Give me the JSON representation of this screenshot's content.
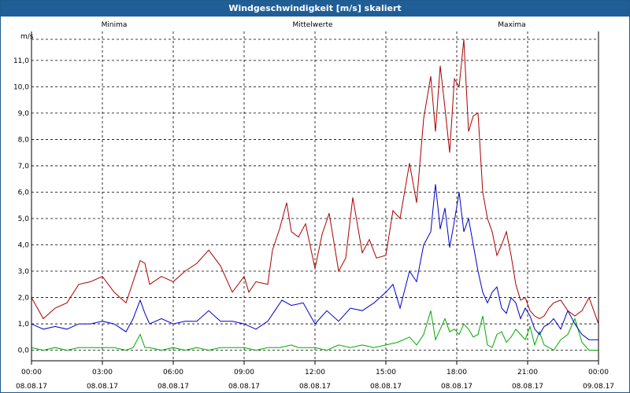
{
  "window_title": "Windgeschwindigkeit [m/s] skaliert",
  "chart_data": {
    "type": "line",
    "title": "Windgeschwindigkeit [m/s] skaliert",
    "ylabel": "m/s",
    "ylim": [
      -0.4,
      12.1
    ],
    "xlim": [
      0,
      24
    ],
    "grid": true,
    "legend": "top",
    "y_ticks": [
      "0,0",
      "1,0",
      "2,0",
      "3,0",
      "4,0",
      "5,0",
      "6,0",
      "7,0",
      "8,0",
      "9,0",
      "10,0",
      "11,0"
    ],
    "x_ticks": [
      {
        "time": "00:00",
        "date": "08.08.17"
      },
      {
        "time": "03:00",
        "date": "08.08.17"
      },
      {
        "time": "06:00",
        "date": "08.08.17"
      },
      {
        "time": "09:00",
        "date": "08.08.17"
      },
      {
        "time": "12:00",
        "date": "08.08.17"
      },
      {
        "time": "15:00",
        "date": "08.08.17"
      },
      {
        "time": "18:00",
        "date": "08.08.17"
      },
      {
        "time": "21:00",
        "date": "08.08.17"
      },
      {
        "time": "00:00",
        "date": "09.08.17"
      }
    ],
    "series": [
      {
        "name": "Minima",
        "color": "#00aa00",
        "x": [
          0,
          0.5,
          1,
          1.5,
          2,
          2.5,
          3,
          3.5,
          4,
          4.3,
          4.6,
          4.8,
          5,
          5.5,
          6,
          6.5,
          7,
          7.5,
          8,
          8.5,
          9,
          9.5,
          10,
          10.5,
          11,
          11.3,
          11.5,
          12,
          12.5,
          13,
          13.5,
          14,
          14.5,
          15,
          15.5,
          16,
          16.3,
          16.6,
          16.9,
          17.1,
          17.3,
          17.5,
          17.7,
          17.9,
          18.1,
          18.3,
          18.5,
          18.7,
          18.9,
          19.1,
          19.3,
          19.5,
          19.7,
          19.9,
          20.1,
          20.3,
          20.5,
          20.7,
          20.9,
          21.1,
          21.3,
          21.5,
          21.7,
          21.9,
          22.1,
          22.4,
          22.7,
          23,
          23.3,
          23.6,
          24
        ],
        "values": [
          0.1,
          0.0,
          0.1,
          0.0,
          0.1,
          0.1,
          0.1,
          0.1,
          0.0,
          0.1,
          0.6,
          0.1,
          0.1,
          0.0,
          0.1,
          0.0,
          0.1,
          0.0,
          0.1,
          0.1,
          0.1,
          0.0,
          0.1,
          0.1,
          0.2,
          0.1,
          0.1,
          0.1,
          0.0,
          0.2,
          0.1,
          0.2,
          0.1,
          0.2,
          0.3,
          0.5,
          0.2,
          0.6,
          1.5,
          0.4,
          0.8,
          1.2,
          0.7,
          0.8,
          0.6,
          1.0,
          0.8,
          0.5,
          0.6,
          1.3,
          0.2,
          0.1,
          0.6,
          0.7,
          0.3,
          0.5,
          0.8,
          0.6,
          0.4,
          0.9,
          0.2,
          0.7,
          0.2,
          0.1,
          0.0,
          0.4,
          0.6,
          1.2,
          0.3,
          0.0,
          0.0
        ]
      },
      {
        "name": "Mittelwerte",
        "color": "#0000cc",
        "x": [
          0,
          0.5,
          1,
          1.5,
          2,
          2.5,
          3,
          3.5,
          4,
          4.3,
          4.6,
          4.8,
          5,
          5.5,
          6,
          6.5,
          7,
          7.5,
          8,
          8.5,
          9,
          9.5,
          10,
          10.3,
          10.6,
          11,
          11.5,
          12,
          12.5,
          13,
          13.5,
          14,
          14.5,
          15,
          15.3,
          15.6,
          16,
          16.3,
          16.6,
          16.9,
          17.1,
          17.3,
          17.5,
          17.7,
          17.9,
          18.1,
          18.3,
          18.5,
          18.7,
          18.9,
          19.1,
          19.3,
          19.5,
          19.7,
          19.9,
          20.1,
          20.3,
          20.5,
          20.7,
          20.9,
          21.1,
          21.3,
          21.5,
          21.7,
          21.9,
          22.1,
          22.4,
          22.7,
          23,
          23.3,
          23.6,
          24
        ],
        "values": [
          1.0,
          0.8,
          0.9,
          0.8,
          1.0,
          1.0,
          1.1,
          1.0,
          0.7,
          1.2,
          1.9,
          1.4,
          1.0,
          1.2,
          1.0,
          1.1,
          1.1,
          1.5,
          1.1,
          1.1,
          1.0,
          0.8,
          1.1,
          1.5,
          1.9,
          1.7,
          1.8,
          1.0,
          1.5,
          1.1,
          1.6,
          1.5,
          1.8,
          2.2,
          2.5,
          1.6,
          3.0,
          2.6,
          4.0,
          4.5,
          6.3,
          4.6,
          5.4,
          3.9,
          4.9,
          6.0,
          4.5,
          5.0,
          4.0,
          3.0,
          2.2,
          1.8,
          2.2,
          2.4,
          1.6,
          1.4,
          2.0,
          1.8,
          1.2,
          1.6,
          1.3,
          0.8,
          0.6,
          0.9,
          1.0,
          1.2,
          0.8,
          1.5,
          1.0,
          0.6,
          0.4,
          0.4
        ]
      },
      {
        "name": "Maxima",
        "color": "#aa0000",
        "x": [
          0,
          0.5,
          1,
          1.5,
          2,
          2.5,
          3,
          3.5,
          4,
          4.3,
          4.6,
          4.8,
          5,
          5.5,
          6,
          6.5,
          7,
          7.5,
          8,
          8.5,
          9,
          9.2,
          9.5,
          10,
          10.2,
          10.5,
          10.8,
          11,
          11.3,
          11.6,
          12,
          12.3,
          12.6,
          13,
          13.3,
          13.6,
          14,
          14.3,
          14.6,
          15,
          15.3,
          15.6,
          16,
          16.3,
          16.6,
          16.9,
          17.1,
          17.3,
          17.5,
          17.7,
          17.9,
          18.1,
          18.3,
          18.5,
          18.7,
          18.9,
          19.1,
          19.3,
          19.5,
          19.7,
          19.9,
          20.1,
          20.3,
          20.5,
          20.7,
          20.9,
          21.1,
          21.3,
          21.5,
          21.7,
          21.9,
          22.1,
          22.4,
          22.7,
          23,
          23.3,
          23.6,
          24
        ],
        "values": [
          2.0,
          1.2,
          1.6,
          1.8,
          2.5,
          2.6,
          2.8,
          2.2,
          1.8,
          2.6,
          3.4,
          3.3,
          2.5,
          2.8,
          2.6,
          3.0,
          3.3,
          3.8,
          3.2,
          2.2,
          2.8,
          2.2,
          2.6,
          2.5,
          3.8,
          4.6,
          5.6,
          4.5,
          4.3,
          4.8,
          3.1,
          4.4,
          5.2,
          3.0,
          3.5,
          5.8,
          3.7,
          4.2,
          3.5,
          3.6,
          5.3,
          5.0,
          7.1,
          5.6,
          8.8,
          10.4,
          8.3,
          10.8,
          9.2,
          7.5,
          10.3,
          10.0,
          11.8,
          8.3,
          8.9,
          9.0,
          6.0,
          5.0,
          4.5,
          3.6,
          4.0,
          4.5,
          3.6,
          2.5,
          1.9,
          2.0,
          1.5,
          1.3,
          1.2,
          1.3,
          1.6,
          1.8,
          1.9,
          1.5,
          1.3,
          1.5,
          2.0,
          1.0
        ]
      }
    ]
  }
}
